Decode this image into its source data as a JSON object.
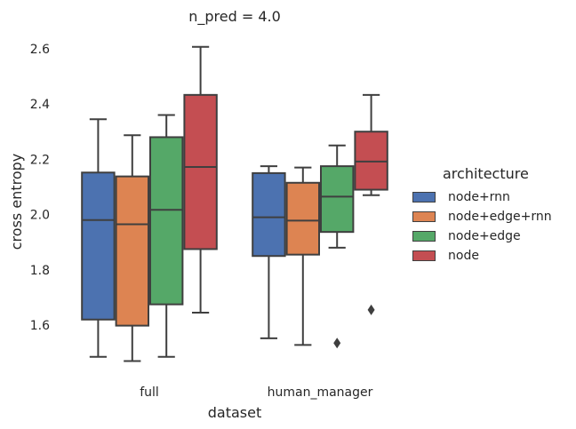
{
  "chart_data": {
    "type": "boxplot",
    "title": "n_pred = 4.0",
    "xlabel": "dataset",
    "ylabel": "cross entropy",
    "categories": [
      "full",
      "human_manager"
    ],
    "ylim": [
      1.42,
      2.68
    ],
    "yticks": [
      1.6,
      1.8,
      2.0,
      2.2,
      2.4,
      2.6
    ],
    "ytick_labels": [
      "1.6",
      "1.8",
      "2.0",
      "2.2",
      "2.4",
      "2.6"
    ],
    "legend": {
      "title": "architecture",
      "placement": "right"
    },
    "series": [
      {
        "name": "node+rnn",
        "color": "#4c72b0",
        "boxes": [
          {
            "whislo": 1.485,
            "q1": 1.62,
            "median": 1.98,
            "q3": 2.152,
            "whishi": 2.345,
            "fliers": []
          },
          {
            "whislo": 1.552,
            "q1": 1.85,
            "median": 1.99,
            "q3": 2.15,
            "whishi": 2.175,
            "fliers": []
          }
        ]
      },
      {
        "name": "node+edge+rnn",
        "color": "#dd8452",
        "boxes": [
          {
            "whislo": 1.47,
            "q1": 1.598,
            "median": 1.965,
            "q3": 2.138,
            "whishi": 2.287,
            "fliers": []
          },
          {
            "whislo": 1.528,
            "q1": 1.855,
            "median": 1.978,
            "q3": 2.115,
            "whishi": 2.17,
            "fliers": []
          }
        ]
      },
      {
        "name": "node+edge",
        "color": "#55a868",
        "boxes": [
          {
            "whislo": 1.485,
            "q1": 1.675,
            "median": 2.017,
            "q3": 2.28,
            "whishi": 2.36,
            "fliers": []
          },
          {
            "whislo": 1.88,
            "q1": 1.937,
            "median": 2.065,
            "q3": 2.175,
            "whishi": 2.25,
            "fliers": [
              1.535
            ]
          }
        ]
      },
      {
        "name": "node",
        "color": "#c44e52",
        "boxes": [
          {
            "whislo": 1.645,
            "q1": 1.875,
            "median": 2.172,
            "q3": 2.433,
            "whishi": 2.607,
            "fliers": []
          },
          {
            "whislo": 2.07,
            "q1": 2.09,
            "median": 2.192,
            "q3": 2.3,
            "whishi": 2.433,
            "fliers": [
              1.655
            ]
          }
        ]
      }
    ]
  }
}
